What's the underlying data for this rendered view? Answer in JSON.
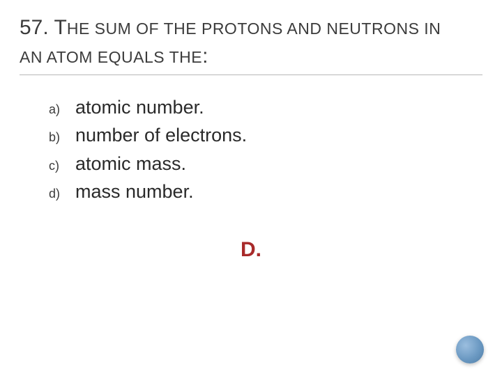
{
  "question": {
    "number": "57. ",
    "cap1": "T",
    "part1": "HE SUM OF THE PROTONS AND NEUTRONS IN ",
    "part2": "AN ATOM EQUALS THE",
    "colon": ":"
  },
  "options": [
    {
      "letter": "a)",
      "text": "atomic number."
    },
    {
      "letter": "b)",
      "text": "number of electrons."
    },
    {
      "letter": "c)",
      "text": "atomic mass."
    },
    {
      "letter": "d)",
      "text": "mass number."
    }
  ],
  "answer": "D.",
  "colors": {
    "rule": "#b8b8b8",
    "text": "#3b3b3b",
    "answer": "#a82a2a",
    "dot_light": "#9bbedf",
    "dot_mid": "#6b99c2",
    "dot_dark": "#4d7ba4"
  }
}
